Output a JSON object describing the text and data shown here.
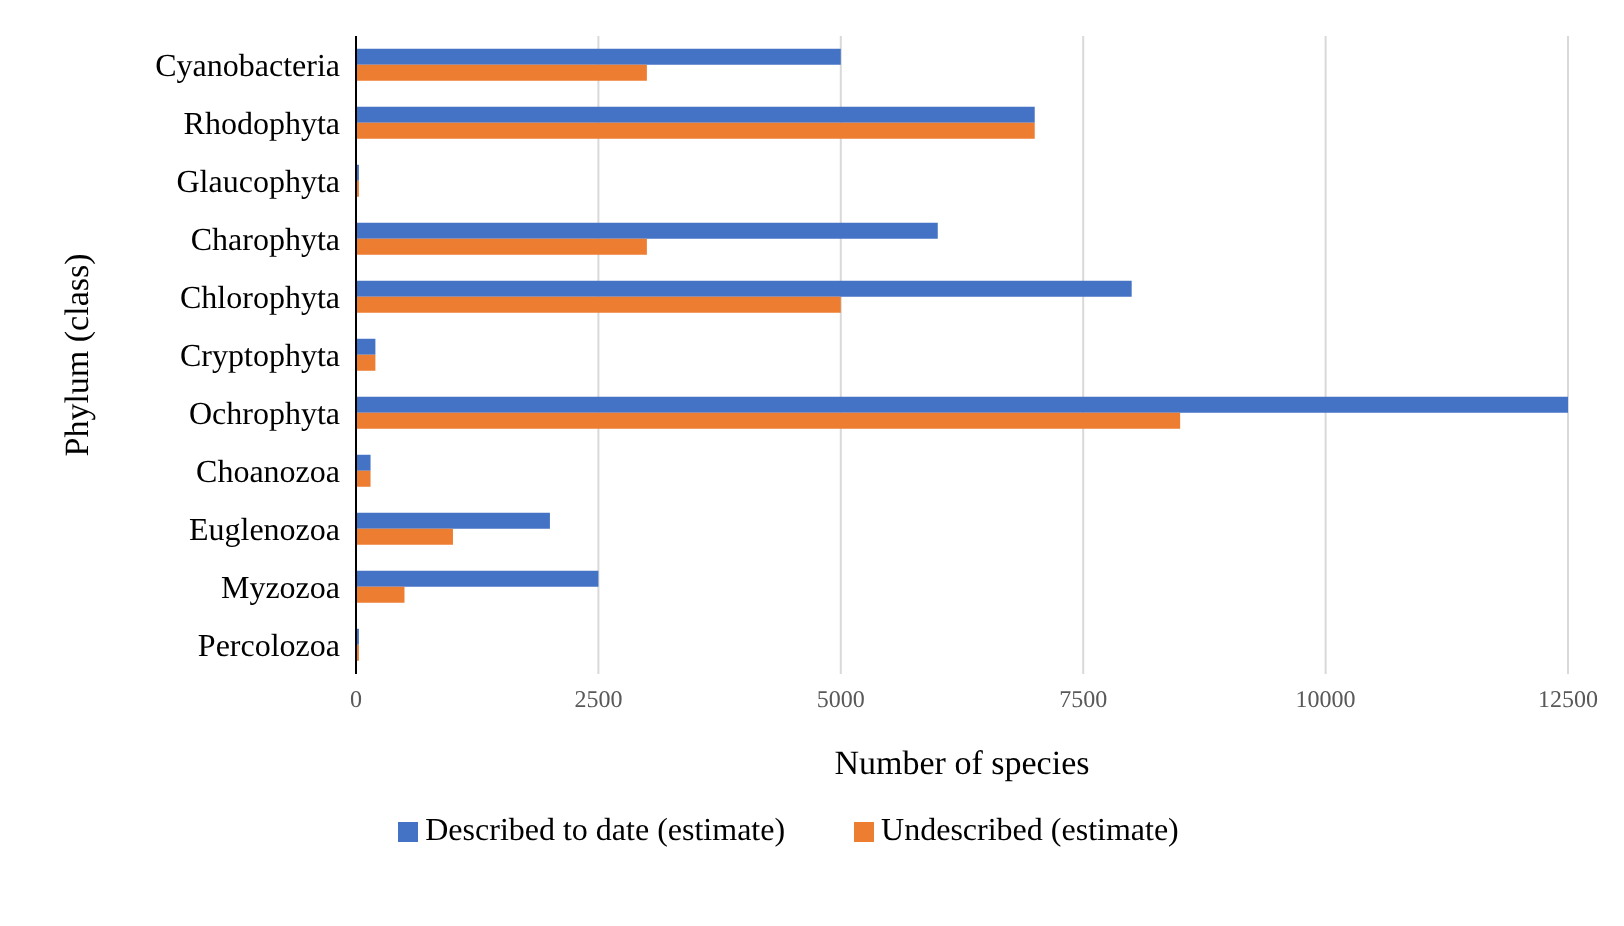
{
  "chart_data": {
    "type": "bar",
    "orientation": "horizontal",
    "xlabel": "Number of species",
    "ylabel": "Phylum (class)",
    "categories": [
      "Cyanobacteria",
      "Rhodophyta",
      "Glaucophyta",
      "Charophyta",
      "Chlorophyta",
      "Cryptophyta",
      "Ochrophyta",
      "Choanozoa",
      "Euglenozoa",
      "Myzozoa",
      "Percolozoa"
    ],
    "series": [
      {
        "name": "Described to date (estimate)",
        "color": "#4472c4",
        "values": [
          5000,
          7000,
          30,
          6000,
          8000,
          200,
          12500,
          150,
          2000,
          2500,
          30
        ]
      },
      {
        "name": "Undescribed (estimate)",
        "color": "#ed7d31",
        "values": [
          3000,
          7000,
          30,
          3000,
          5000,
          200,
          8500,
          150,
          1000,
          500,
          30
        ]
      }
    ],
    "xlim": [
      0,
      12500
    ],
    "xticks": [
      0,
      2500,
      5000,
      7500,
      10000,
      12500
    ],
    "grid": "x",
    "legend": "bottom"
  }
}
